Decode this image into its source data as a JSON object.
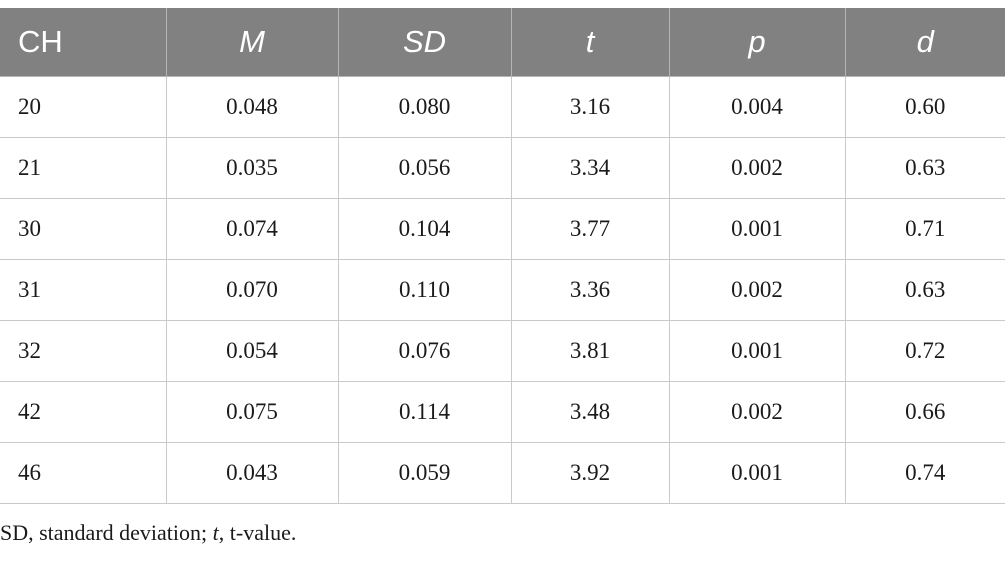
{
  "table": {
    "headers": [
      "CH",
      "M",
      "SD",
      "t",
      "p",
      "d"
    ],
    "rows": [
      [
        "20",
        "0.048",
        "0.080",
        "3.16",
        "0.004",
        "0.60"
      ],
      [
        "21",
        "0.035",
        "0.056",
        "3.34",
        "0.002",
        "0.63"
      ],
      [
        "30",
        "0.074",
        "0.104",
        "3.77",
        "0.001",
        "0.71"
      ],
      [
        "31",
        "0.070",
        "0.110",
        "3.36",
        "0.002",
        "0.63"
      ],
      [
        "32",
        "0.054",
        "0.076",
        "3.81",
        "0.001",
        "0.72"
      ],
      [
        "42",
        "0.075",
        "0.114",
        "3.48",
        "0.002",
        "0.66"
      ],
      [
        "46",
        "0.043",
        "0.059",
        "3.92",
        "0.001",
        "0.74"
      ]
    ]
  },
  "footnote": {
    "part1": "SD, standard deviation; ",
    "part2": "t",
    "part3": ", t-value."
  }
}
